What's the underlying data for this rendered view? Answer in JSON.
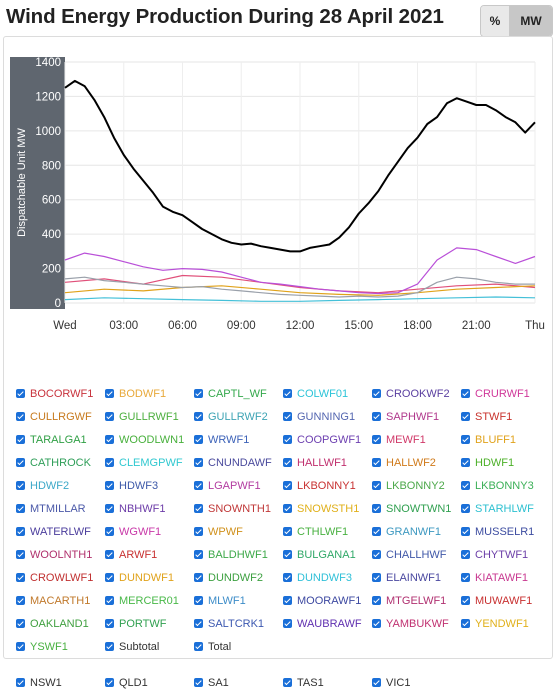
{
  "header": {
    "title": "Wind Energy Production During 28 April 2021"
  },
  "toolbar": {
    "pct_label": "%",
    "mw_label": "MW"
  },
  "chart_data": {
    "type": "line",
    "ylabel": "Dispatchable Unit MW",
    "xlabel": "",
    "ylim": [
      0,
      1400
    ],
    "yticks": [
      0,
      200,
      400,
      600,
      800,
      1000,
      1200,
      1400
    ],
    "xticks": [
      "Wed",
      "03:00",
      "06:00",
      "09:00",
      "12:00",
      "15:00",
      "18:00",
      "21:00",
      "Thu"
    ],
    "xlim_hours": [
      0,
      24
    ],
    "grid": true,
    "series": [
      {
        "name": "Total",
        "color": "#000000",
        "x": [
          0,
          0.5,
          1,
          1.5,
          2,
          2.5,
          3,
          3.5,
          4,
          4.5,
          5,
          5.5,
          6,
          6.5,
          7,
          7.5,
          8,
          8.5,
          9,
          9.5,
          10,
          10.5,
          11,
          11.5,
          12,
          12.5,
          13,
          13.5,
          14,
          14.5,
          15,
          15.5,
          16,
          16.5,
          17,
          17.5,
          18,
          18.5,
          19,
          19.5,
          20,
          20.5,
          21,
          21.5,
          22,
          22.5,
          23,
          23.5,
          24
        ],
        "y": [
          1250,
          1290,
          1260,
          1180,
          1080,
          960,
          860,
          780,
          710,
          640,
          560,
          530,
          510,
          470,
          430,
          400,
          370,
          350,
          340,
          345,
          330,
          320,
          310,
          300,
          300,
          320,
          330,
          340,
          380,
          440,
          520,
          580,
          650,
          740,
          820,
          900,
          960,
          1040,
          1080,
          1160,
          1190,
          1170,
          1150,
          1150,
          1120,
          1080,
          1050,
          990,
          1050
        ]
      },
      {
        "name": "SA1",
        "color": "#b94fd8",
        "x": [
          0,
          1,
          2,
          3,
          4,
          5,
          6,
          7,
          8,
          9,
          10,
          11,
          12,
          13,
          14,
          15,
          16,
          17,
          18,
          19,
          20,
          21,
          22,
          23,
          24
        ],
        "y": [
          250,
          290,
          270,
          240,
          210,
          190,
          200,
          195,
          180,
          150,
          120,
          110,
          95,
          80,
          70,
          60,
          55,
          60,
          110,
          250,
          320,
          310,
          270,
          230,
          270
        ]
      },
      {
        "name": "VIC1",
        "color": "#9aa0aa",
        "x": [
          0,
          1,
          2,
          3,
          4,
          5,
          6,
          7,
          8,
          9,
          10,
          11,
          12,
          13,
          14,
          15,
          16,
          17,
          18,
          19,
          20,
          21,
          22,
          23,
          24
        ],
        "y": [
          140,
          150,
          130,
          120,
          110,
          100,
          90,
          95,
          80,
          70,
          60,
          50,
          45,
          40,
          35,
          40,
          35,
          40,
          60,
          120,
          150,
          140,
          120,
          110,
          110
        ]
      },
      {
        "name": "NSW1",
        "color": "#e0a21a",
        "x": [
          0,
          2,
          4,
          6,
          8,
          10,
          12,
          14,
          16,
          18,
          20,
          22,
          24
        ],
        "y": [
          60,
          80,
          70,
          90,
          100,
          80,
          60,
          50,
          45,
          60,
          80,
          90,
          100
        ]
      },
      {
        "name": "TAS1",
        "color": "#e0507a",
        "x": [
          0,
          2,
          4,
          6,
          8,
          10,
          12,
          14,
          16,
          18,
          20,
          22,
          24
        ],
        "y": [
          120,
          140,
          110,
          160,
          150,
          120,
          90,
          70,
          60,
          80,
          100,
          110,
          90
        ]
      },
      {
        "name": "QLD1",
        "color": "#44c0d8",
        "x": [
          0,
          2,
          4,
          6,
          8,
          10,
          12,
          14,
          16,
          18,
          20,
          22,
          24
        ],
        "y": [
          20,
          30,
          25,
          20,
          15,
          10,
          10,
          15,
          20,
          25,
          30,
          35,
          30
        ]
      }
    ]
  },
  "legend": {
    "items": [
      {
        "label": "BOCORWF1",
        "color": "#c8323c"
      },
      {
        "label": "BODWF1",
        "color": "#e8a93b"
      },
      {
        "label": "CAPTL_WF",
        "color": "#34a84c"
      },
      {
        "label": "COLWF01",
        "color": "#2cc4d8"
      },
      {
        "label": "CROOKWF2",
        "color": "#5a3fa0"
      },
      {
        "label": "CRURWF1",
        "color": "#d0389a"
      },
      {
        "label": "CULLRGWF",
        "color": "#c77a1e"
      },
      {
        "label": "GULLRWF1",
        "color": "#4caf3e"
      },
      {
        "label": "GULLRWF2",
        "color": "#3da3b4"
      },
      {
        "label": "GUNNING1",
        "color": "#5466b0"
      },
      {
        "label": "SAPHWF1",
        "color": "#b0388c"
      },
      {
        "label": "STWF1",
        "color": "#c8322c"
      },
      {
        "label": "TARALGA1",
        "color": "#2f9f44"
      },
      {
        "label": "WOODLWN1",
        "color": "#48b03c"
      },
      {
        "label": "WRWF1",
        "color": "#3c62b8"
      },
      {
        "label": "COOPGWF1",
        "color": "#6c3fb0"
      },
      {
        "label": "MEWF1",
        "color": "#d03868"
      },
      {
        "label": "BLUFF1",
        "color": "#e0a21a"
      },
      {
        "label": "CATHROCK",
        "color": "#2e9e58"
      },
      {
        "label": "CLEMGPWF",
        "color": "#30c8d0"
      },
      {
        "label": "CNUNDAWF",
        "color": "#4a4a9c"
      },
      {
        "label": "HALLWF1",
        "color": "#c0306e"
      },
      {
        "label": "HALLWF2",
        "color": "#d07a1a"
      },
      {
        "label": "HDWF1",
        "color": "#4cb028"
      },
      {
        "label": "HDWF2",
        "color": "#3ca8c8"
      },
      {
        "label": "HDWF3",
        "color": "#3c58a8"
      },
      {
        "label": "LGAPWF1",
        "color": "#b23ca0"
      },
      {
        "label": "LKBONNY1",
        "color": "#c83232"
      },
      {
        "label": "LKBONNY2",
        "color": "#4ca84a"
      },
      {
        "label": "LKBONNY3",
        "color": "#3cb058"
      },
      {
        "label": "MTMILLAR",
        "color": "#4a58a8"
      },
      {
        "label": "NBHWF1",
        "color": "#6c3ca8"
      },
      {
        "label": "SNOWNTH1",
        "color": "#c03838"
      },
      {
        "label": "SNOWSTH1",
        "color": "#e0b01a"
      },
      {
        "label": "SNOWTWN1",
        "color": "#30a050"
      },
      {
        "label": "STARHLWF",
        "color": "#2cc0d0"
      },
      {
        "label": "WATERLWF",
        "color": "#4a3c9c"
      },
      {
        "label": "WGWF1",
        "color": "#c838a8"
      },
      {
        "label": "WPWF",
        "color": "#d0901a"
      },
      {
        "label": "CTHLWF1",
        "color": "#48b040"
      },
      {
        "label": "GRANWF1",
        "color": "#3c98c0"
      },
      {
        "label": "MUSSELR1",
        "color": "#3c4ca0"
      },
      {
        "label": "WOOLNTH1",
        "color": "#b0306c"
      },
      {
        "label": "ARWF1",
        "color": "#c83030"
      },
      {
        "label": "BALDHWF1",
        "color": "#3ca848"
      },
      {
        "label": "BULGANA1",
        "color": "#30a868"
      },
      {
        "label": "CHALLHWF",
        "color": "#4058a8"
      },
      {
        "label": "CHYTWF1",
        "color": "#6c3fa8"
      },
      {
        "label": "CROWLWF1",
        "color": "#c03030"
      },
      {
        "label": "DUNDWF1",
        "color": "#e0a21a"
      },
      {
        "label": "DUNDWF2",
        "color": "#3ca040"
      },
      {
        "label": "DUNDWF3",
        "color": "#30c0d8"
      },
      {
        "label": "ELAINWF1",
        "color": "#4a48a0"
      },
      {
        "label": "KIATAWF1",
        "color": "#c83890"
      },
      {
        "label": "MACARTH1",
        "color": "#c0782a"
      },
      {
        "label": "MERCER01",
        "color": "#48b848"
      },
      {
        "label": "MLWF1",
        "color": "#3c8cc8"
      },
      {
        "label": "MOORAWF1",
        "color": "#3c48a0"
      },
      {
        "label": "MTGELWF1",
        "color": "#b03070"
      },
      {
        "label": "MUWAWF1",
        "color": "#c83030"
      },
      {
        "label": "OAKLAND1",
        "color": "#40a040"
      },
      {
        "label": "PORTWF",
        "color": "#30a050"
      },
      {
        "label": "SALTCRK1",
        "color": "#3c58b0"
      },
      {
        "label": "WAUBRAWF",
        "color": "#6030b0"
      },
      {
        "label": "YAMBUKWF",
        "color": "#c03070"
      },
      {
        "label": "YENDWF1",
        "color": "#e0b01a"
      },
      {
        "label": "YSWF1",
        "color": "#48b040"
      },
      {
        "label": "Subtotal",
        "color": "#333333"
      },
      {
        "label": "Total",
        "color": "#333333"
      }
    ],
    "regions": [
      {
        "label": "NSW1",
        "color": "#333333"
      },
      {
        "label": "QLD1",
        "color": "#333333"
      },
      {
        "label": "SA1",
        "color": "#333333"
      },
      {
        "label": "TAS1",
        "color": "#333333"
      },
      {
        "label": "VIC1",
        "color": "#333333"
      }
    ]
  }
}
